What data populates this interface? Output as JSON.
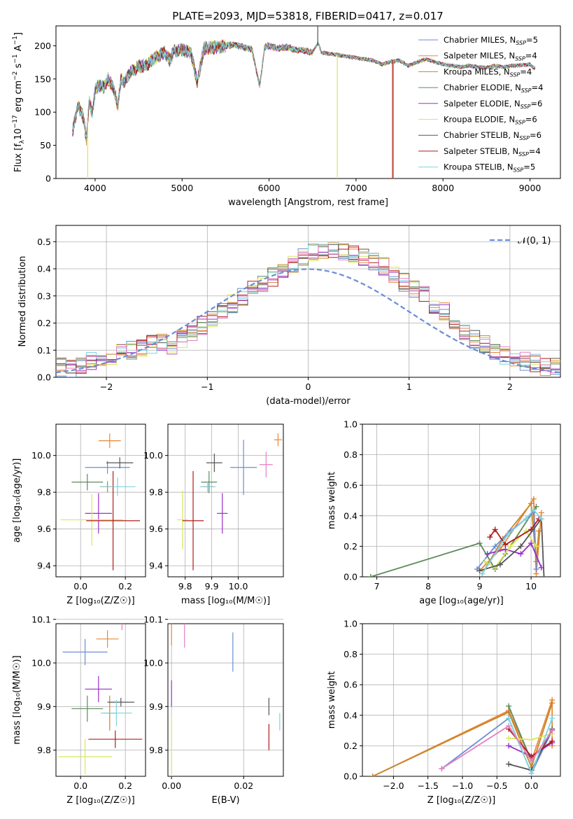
{
  "figure": {
    "title": "PLATE=2093, MJD=53818, FIBERID=0417, z=0.017"
  },
  "models": [
    {
      "name": "Chabrier MILES, N$_{SSP}$=5",
      "label_main": "Chabrier MILES, N",
      "sub": "SSP",
      "label_tail": "=5",
      "color": "#6a8ed4"
    },
    {
      "name": "Salpeter MILES, N$_{SSP}$=4",
      "label_main": "Salpeter MILES, N",
      "sub": "SSP",
      "label_tail": "=4",
      "color": "#e8873a"
    },
    {
      "name": "Kroupa MILES, N$_{SSP}$=4",
      "label_main": "Kroupa MILES, N",
      "sub": "SSP",
      "label_tail": "=4",
      "color": "#c8862a"
    },
    {
      "name": "Chabrier ELODIE, N$_{SSP}$=4",
      "label_main": "Chabrier ELODIE, N",
      "sub": "SSP",
      "label_tail": "=4",
      "color": "#5e8a5e"
    },
    {
      "name": "Salpeter ELODIE, N$_{SSP}$=6",
      "label_main": "Salpeter ELODIE, N",
      "sub": "SSP",
      "label_tail": "=6",
      "color": "#9b30c9"
    },
    {
      "name": "Kroupa ELODIE, N$_{SSP}$=6",
      "label_main": "Kroupa ELODIE, N",
      "sub": "SSP",
      "label_tail": "=6",
      "color": "#d8e85a"
    },
    {
      "name": "Chabrier STELIB, N$_{SSP}$=6",
      "label_main": "Chabrier STELIB, N",
      "sub": "SSP",
      "label_tail": "=6",
      "color": "#555555"
    },
    {
      "name": "Salpeter STELIB, N$_{SSP}$=4",
      "label_main": "Salpeter STELIB, N",
      "sub": "SSP",
      "label_tail": "=4",
      "color": "#b01c1c"
    },
    {
      "name": "Kroupa STELIB, N$_{SSP}$=5",
      "label_main": "Kroupa STELIB, N",
      "sub": "SSP",
      "label_tail": "=5",
      "color": "#7fd3e0"
    }
  ],
  "chart_data": [
    {
      "id": "spectrum",
      "type": "line",
      "xlabel": "wavelength [Angstrom, rest frame]",
      "ylabel_main": "Flux [f",
      "ylabel_sub": "λ",
      "ylabel_rest": "10",
      "ylabel_exp": "−17",
      "ylabel_tail": " erg cm",
      "ylabel_exp2": "−2",
      "ylabel_s": " s",
      "ylabel_exp3": "−1",
      "ylabel_a": " A",
      "ylabel_exp4": "−1",
      "ylabel_close": "]",
      "xlim": [
        3550,
        9350
      ],
      "ylim": [
        0,
        230
      ],
      "xticks": [
        4000,
        5000,
        6000,
        7000,
        8000,
        9000
      ],
      "yticks": [
        0,
        50,
        100,
        150,
        200
      ],
      "wave": [
        3740,
        3800,
        3860,
        3900,
        3930,
        3970,
        4000,
        4050,
        4100,
        4150,
        4200,
        4260,
        4300,
        4340,
        4400,
        4500,
        4600,
        4700,
        4800,
        4860,
        4900,
        5000,
        5100,
        5175,
        5250,
        5400,
        5500,
        5600,
        5700,
        5800,
        5893,
        5950,
        6000,
        6100,
        6200,
        6300,
        6400,
        6500,
        6563,
        6600,
        6700,
        6800,
        6900,
        7000,
        7100,
        7200,
        7300,
        7400,
        7500,
        7600,
        7700,
        7800,
        7900,
        8000,
        8100,
        8200,
        8300,
        8400,
        8500,
        8600,
        8700,
        8800,
        8900,
        9000,
        9050
      ],
      "flux": [
        70,
        110,
        95,
        60,
        115,
        98,
        135,
        140,
        138,
        150,
        140,
        110,
        150,
        145,
        160,
        168,
        172,
        182,
        190,
        178,
        192,
        194,
        190,
        145,
        196,
        198,
        200,
        202,
        198,
        195,
        140,
        198,
        200,
        196,
        198,
        194,
        193,
        190,
        205,
        190,
        188,
        186,
        184,
        182,
        180,
        178,
        172,
        176,
        178,
        170,
        175,
        180,
        176,
        172,
        170,
        168,
        170,
        168,
        167,
        170,
        168,
        170,
        171,
        172,
        166
      ],
      "spikes": [
        {
          "model": 5,
          "x": 3915,
          "to": 0
        },
        {
          "model": 5,
          "x": 6785,
          "to": 0
        },
        {
          "model": 7,
          "x": 7420,
          "to": 0
        },
        {
          "model": 1,
          "x": 7430,
          "to": 0
        },
        {
          "model": 6,
          "x": 6560,
          "to": 230
        }
      ]
    },
    {
      "id": "residuals",
      "type": "step",
      "xlabel": "(data-model)/error",
      "ylabel": "Normed distribution",
      "legend": "𝒩(0, 1)",
      "xlim": [
        -2.5,
        2.5
      ],
      "ylim": [
        0,
        0.56
      ],
      "xticks": [
        -2,
        -1,
        0,
        1,
        2
      ],
      "yticks": [
        0.0,
        0.1,
        0.2,
        0.3,
        0.4,
        0.5
      ],
      "bin_width": 0.1,
      "bin_start": -2.5,
      "base_hist": [
        0.04,
        0.03,
        0.05,
        0.06,
        0.05,
        0.08,
        0.09,
        0.1,
        0.11,
        0.12,
        0.13,
        0.12,
        0.14,
        0.16,
        0.19,
        0.22,
        0.24,
        0.27,
        0.3,
        0.33,
        0.35,
        0.37,
        0.4,
        0.42,
        0.44,
        0.46,
        0.47,
        0.47,
        0.46,
        0.45,
        0.44,
        0.43,
        0.41,
        0.38,
        0.35,
        0.33,
        0.3,
        0.27,
        0.24,
        0.2,
        0.17,
        0.14,
        0.12,
        0.1,
        0.08,
        0.07,
        0.06,
        0.05,
        0.04,
        0.04
      ]
    },
    {
      "id": "age_vs_Z",
      "type": "errorbar",
      "xlabel": "Z [log₁₀(Z/Z☉)]",
      "ylabel": "age  [log₁₀(age/yr)]",
      "xlim": [
        -0.11,
        0.29
      ],
      "ylim": [
        9.34,
        10.17
      ],
      "xticks": [
        0.0,
        0.2
      ],
      "yticks": [
        9.4,
        9.6,
        9.8,
        10.0
      ],
      "points": [
        {
          "model": 0,
          "x": 0.12,
          "y": 9.935,
          "xerr": 0.1,
          "yerr": 0.035
        },
        {
          "model": 1,
          "x": 0.13,
          "y": 10.08,
          "xerr": 0.05,
          "yerr": 0.04
        },
        {
          "model": 2,
          "x": 0.12,
          "y": 9.83,
          "xerr": 0.03,
          "yerr": 0.03
        },
        {
          "model": 3,
          "x": 0.03,
          "y": 9.855,
          "xerr": 0.07,
          "yerr": 0.045
        },
        {
          "model": 4,
          "x": 0.08,
          "y": 9.685,
          "xerr": 0.06,
          "yerr": 0.11
        },
        {
          "model": 5,
          "x": 0.05,
          "y": 9.65,
          "xerr": 0.14,
          "yerr": 0.14
        },
        {
          "model": 6,
          "x": 0.175,
          "y": 9.96,
          "xerr": 0.06,
          "yerr": 0.03
        },
        {
          "model": 7,
          "x": 0.145,
          "y": 9.645,
          "xerr": 0.12,
          "yerr": 0.27
        },
        {
          "model": 8,
          "x": 0.165,
          "y": 9.83,
          "xerr": 0.08,
          "yerr": 0.05
        },
        {
          "model": 0,
          "x": 0.15,
          "y": 9.95,
          "xerr": 0.08,
          "yerr": 0.02,
          "hidden": true
        }
      ]
    },
    {
      "id": "age_vs_mass",
      "type": "errorbar",
      "xlabel": "mass [log₁₀(M/M☉)]",
      "ylabel": "",
      "xlim": [
        9.735,
        10.17
      ],
      "ylim": [
        9.34,
        10.17
      ],
      "xticks": [
        9.8,
        9.9,
        10.0
      ],
      "yticks": [
        9.4,
        9.6,
        9.8,
        10.0
      ],
      "points": [
        {
          "model": 0,
          "x": 10.02,
          "y": 9.935,
          "xerr": 0.05,
          "yerr": 0.15
        },
        {
          "model": 1,
          "x": 10.15,
          "y": 10.085,
          "xerr": 0.015,
          "yerr": 0.035
        },
        {
          "model": 2,
          "x": 9.885,
          "y": 9.83,
          "xerr": 0.02,
          "yerr": 0.03
        },
        {
          "model": 3,
          "x": 9.89,
          "y": 9.855,
          "xerr": 0.03,
          "yerr": 0.06
        },
        {
          "model": 4,
          "x": 9.94,
          "y": 9.685,
          "xerr": 0.02,
          "yerr": 0.11
        },
        {
          "model": 5,
          "x": 9.79,
          "y": 9.65,
          "xerr": 0.02,
          "yerr": 0.16
        },
        {
          "model": 6,
          "x": 9.91,
          "y": 9.96,
          "xerr": 0.03,
          "yerr": 0.05
        },
        {
          "model": 7,
          "x": 9.83,
          "y": 9.645,
          "xerr": 0.04,
          "yerr": 0.27
        },
        {
          "model": 8,
          "x": 9.885,
          "y": 9.83,
          "xerr": 0.03,
          "yerr": 0.03
        },
        {
          "model": 2,
          "x": 10.105,
          "y": 9.95,
          "xerr": 0.025,
          "yerr": 0.07,
          "color_override": "#e57fc0"
        }
      ]
    },
    {
      "id": "mass_weight_vs_age",
      "type": "line",
      "xlabel": "age  [log₁₀(age/yr)]",
      "ylabel": "mass weight",
      "xlim": [
        6.72,
        10.57
      ],
      "ylim": [
        0,
        1.0
      ],
      "xticks": [
        7,
        8,
        9,
        10
      ],
      "yticks": [
        0.0,
        0.2,
        0.4,
        0.6,
        0.8,
        1.0
      ],
      "series": [
        {
          "model": 3,
          "x": [
            6.88,
            9.0,
            9.3,
            9.5,
            10.1
          ],
          "y": [
            0.0,
            0.22,
            0.05,
            0.15,
            0.46
          ]
        },
        {
          "model": 1,
          "x": [
            9.0,
            9.4,
            10.05,
            10.1,
            10.2
          ],
          "y": [
            0.04,
            0.18,
            0.51,
            0.02,
            0.42
          ]
        },
        {
          "model": 2,
          "x": [
            9.05,
            9.45,
            10.0,
            10.1,
            10.15
          ],
          "y": [
            0.02,
            0.25,
            0.48,
            0.1,
            0.3
          ]
        },
        {
          "model": 0,
          "x": [
            8.95,
            9.3,
            9.6,
            10.05,
            10.1
          ],
          "y": [
            0.05,
            0.2,
            0.3,
            0.42,
            0.05
          ]
        },
        {
          "model": 4,
          "x": [
            9.15,
            9.5,
            9.8,
            10.0,
            10.2
          ],
          "y": [
            0.15,
            0.18,
            0.15,
            0.22,
            0.06
          ]
        },
        {
          "model": 5,
          "x": [
            9.1,
            9.3,
            9.6,
            9.9,
            10.1
          ],
          "y": [
            0.1,
            0.06,
            0.2,
            0.3,
            0.2
          ]
        },
        {
          "model": 6,
          "x": [
            9.0,
            9.4,
            9.8,
            10.2,
            10.25
          ],
          "y": [
            0.04,
            0.08,
            0.2,
            0.38,
            0.0
          ]
        },
        {
          "model": 7,
          "x": [
            9.2,
            9.3,
            9.5,
            10.0,
            10.15
          ],
          "y": [
            0.26,
            0.31,
            0.21,
            0.31,
            0.38
          ]
        },
        {
          "model": 8,
          "x": [
            9.05,
            9.55,
            9.9,
            10.05,
            10.2
          ],
          "y": [
            0.02,
            0.28,
            0.38,
            0.44,
            0.38
          ]
        }
      ]
    },
    {
      "id": "mass_vs_Z",
      "type": "errorbar",
      "xlabel": "Z [log₁₀(Z/Z☉)]",
      "ylabel": "mass [log₁₀(M/M☉)]",
      "xlim": [
        -0.11,
        0.29
      ],
      "ylim": [
        9.74,
        10.09
      ],
      "xticks": [
        0.0,
        0.2
      ],
      "yticks": [
        9.8,
        9.9,
        10.0,
        10.1
      ],
      "points": [
        {
          "model": 0,
          "x": 0.02,
          "y": 10.025,
          "xerr": 0.1,
          "yerr": 0.03
        },
        {
          "model": 1,
          "x": 0.12,
          "y": 10.055,
          "xerr": 0.05,
          "yerr": 0.02
        },
        {
          "model": 2,
          "x": 0.13,
          "y": 9.885,
          "xerr": 0.03,
          "yerr": 0.04
        },
        {
          "model": 3,
          "x": 0.03,
          "y": 9.895,
          "xerr": 0.07,
          "yerr": 0.03
        },
        {
          "model": 4,
          "x": 0.08,
          "y": 9.94,
          "xerr": 0.06,
          "yerr": 0.03
        },
        {
          "model": 5,
          "x": 0.02,
          "y": 9.785,
          "xerr": 0.12,
          "yerr": 0.04
        },
        {
          "model": 6,
          "x": 0.18,
          "y": 9.91,
          "xerr": 0.06,
          "yerr": 0.01
        },
        {
          "model": 7,
          "x": 0.155,
          "y": 9.825,
          "xerr": 0.12,
          "yerr": 0.02
        },
        {
          "model": 8,
          "x": 0.16,
          "y": 9.885,
          "xerr": 0.07,
          "yerr": 0.03
        },
        {
          "model": 2,
          "x": 0.185,
          "y": 10.105,
          "xerr": 0.07,
          "yerr": 0.03,
          "color_override": "#e57fc0"
        }
      ]
    },
    {
      "id": "mass_vs_ebv",
      "type": "errorbar",
      "xlabel": "E(B-V)",
      "ylabel": "",
      "xlim": [
        -0.001,
        0.031
      ],
      "ylim": [
        9.74,
        10.09
      ],
      "xticks": [
        0.0,
        0.02
      ],
      "yticks": [
        9.8,
        9.9,
        10.0,
        10.1
      ],
      "points": [
        {
          "model": 0,
          "x": 0.017,
          "y": 10.025,
          "xerr": 0.0,
          "yerr": 0.045
        },
        {
          "model": 1,
          "x": 0.0,
          "y": 10.08,
          "xerr": 0.0,
          "yerr": 0.04
        },
        {
          "model": 4,
          "x": 0.0,
          "y": 9.93,
          "xerr": 0.0,
          "yerr": 0.03
        },
        {
          "model": 5,
          "x": 0.0,
          "y": 9.8,
          "xerr": 0.0,
          "yerr": 0.08
        },
        {
          "model": 6,
          "x": 0.027,
          "y": 9.9,
          "xerr": 0.0,
          "yerr": 0.02
        },
        {
          "model": 7,
          "x": 0.027,
          "y": 9.83,
          "xerr": 0.0,
          "yerr": 0.03
        },
        {
          "model": 8,
          "x": 0.03,
          "y": 9.865,
          "xerr": 0.0,
          "yerr": 0.02
        },
        {
          "model": 2,
          "x": 0.0036,
          "y": 10.07,
          "xerr": 0.0,
          "yerr": 0.035,
          "color_override": "#e57fc0"
        }
      ]
    },
    {
      "id": "mass_weight_vs_Z",
      "type": "line",
      "xlabel": "Z [log₁₀(Z/Z☉)]",
      "ylabel": "mass weight",
      "xlim": [
        -2.45,
        0.42
      ],
      "ylim": [
        0,
        1.0
      ],
      "xticks": [
        -2.0,
        -1.5,
        -1.0,
        -0.5,
        0.0
      ],
      "yticks": [
        0.0,
        0.2,
        0.4,
        0.6,
        0.8,
        1.0
      ],
      "series": [
        {
          "model": 1,
          "x": [
            -2.3,
            -0.33,
            0.0,
            0.3,
            0.3
          ],
          "y": [
            0.0,
            0.43,
            0.1,
            0.5,
            0.2
          ]
        },
        {
          "model": 2,
          "x": [
            -2.3,
            -0.33,
            0.0,
            0.3
          ],
          "y": [
            0.0,
            0.42,
            0.06,
            0.48
          ]
        },
        {
          "model": 0,
          "x": [
            -1.3,
            -0.33,
            0.0,
            0.3
          ],
          "y": [
            0.05,
            0.38,
            0.02,
            0.3
          ]
        },
        {
          "model": 3,
          "x": [
            -0.33,
            0.0,
            0.3
          ],
          "y": [
            0.46,
            0.1,
            0.3
          ]
        },
        {
          "model": 4,
          "x": [
            -0.33,
            0.0,
            0.3
          ],
          "y": [
            0.2,
            0.13,
            0.22
          ]
        },
        {
          "model": 5,
          "x": [
            -0.33,
            0.0,
            0.3
          ],
          "y": [
            0.25,
            0.24,
            0.28
          ]
        },
        {
          "model": 6,
          "x": [
            -0.33,
            0.0,
            0.3
          ],
          "y": [
            0.08,
            0.04,
            0.31
          ]
        },
        {
          "model": 7,
          "x": [
            -0.33,
            0.0,
            0.3
          ],
          "y": [
            0.31,
            0.13,
            0.23
          ]
        },
        {
          "model": 8,
          "x": [
            -0.33,
            0.0,
            0.3
          ],
          "y": [
            0.38,
            0.02,
            0.38
          ]
        },
        {
          "model": 2,
          "x": [
            -1.3,
            -0.33,
            0.0,
            0.3
          ],
          "y": [
            0.05,
            0.33,
            0.1,
            0.3
          ],
          "color_override": "#e57fc0"
        }
      ]
    }
  ]
}
